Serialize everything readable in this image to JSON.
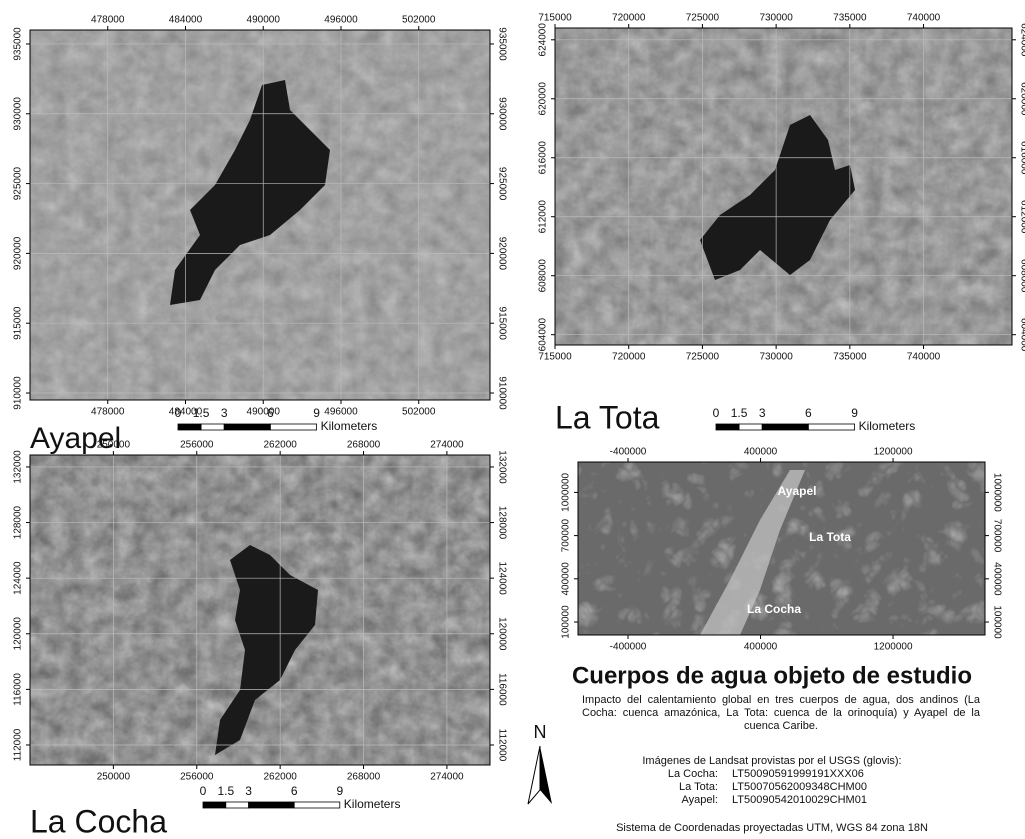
{
  "maps": [
    {
      "name": "Ayapel",
      "xlim": [
        472000,
        507500
      ],
      "ylim": [
        909500,
        936000
      ],
      "xticks": [
        478000,
        484000,
        490000,
        496000,
        502000
      ],
      "yticks": [
        935000,
        930000,
        925000,
        920000,
        915000,
        910000
      ],
      "scale_bar": {
        "ticks": [
          0,
          1.5,
          3,
          6,
          9
        ],
        "unit": "Kilometers"
      }
    },
    {
      "name": "La Tota",
      "xlim": [
        715000,
        746000
      ],
      "ylim": [
        603300,
        624800
      ],
      "xticks": [
        715000,
        720000,
        725000,
        730000,
        735000,
        740000
      ],
      "yticks": [
        624000,
        620000,
        616000,
        612000,
        608000,
        604000
      ],
      "scale_bar": {
        "ticks": [
          0,
          1.5,
          3,
          6,
          9
        ],
        "unit": "Kilometers"
      }
    },
    {
      "name": "La Cocha",
      "xlim": [
        244000,
        277100
      ],
      "ylim": [
        110560,
        132860
      ],
      "xticks": [
        250000,
        256000,
        262000,
        268000,
        274000
      ],
      "yticks": [
        132000,
        128000,
        124000,
        120000,
        116000,
        112000
      ],
      "scale_bar": {
        "ticks": [
          0,
          1.5,
          3,
          6,
          9
        ],
        "unit": "Kilometers"
      }
    }
  ],
  "overview": {
    "xlim": [
      -702000,
      1755000
    ],
    "ylim": [
      10000,
      1211000
    ],
    "xticks": [
      -400000,
      400000,
      1200000
    ],
    "yticks": [
      1000000,
      700000,
      400000,
      100000
    ],
    "labels": [
      "Ayapel",
      "La Tota",
      "La Cocha"
    ]
  },
  "title": "Cuerpos de agua objeto de estudio",
  "description": "Impacto del calentamiento global en tres cuerpos de agua, dos andinos (La Cocha: cuenca amazónica, La Tota: cuenca de la orinoquía) y Ayapel de la cuenca Caribe.",
  "imagery": {
    "heading": "Imágenes de Landsat provistas por el USGS (glovis):",
    "scenes": [
      {
        "lake": "La Cocha:",
        "id": "LT50090591999191XXX06"
      },
      {
        "lake": "La Tota:",
        "id": "LT50070562009348CHM00"
      },
      {
        "lake": "Ayapel:",
        "id": "LT50090542010029CHM01"
      }
    ]
  },
  "crs": "Sistema de Coordenadas proyectadas UTM, WGS 84 zona 18N",
  "north": "N"
}
